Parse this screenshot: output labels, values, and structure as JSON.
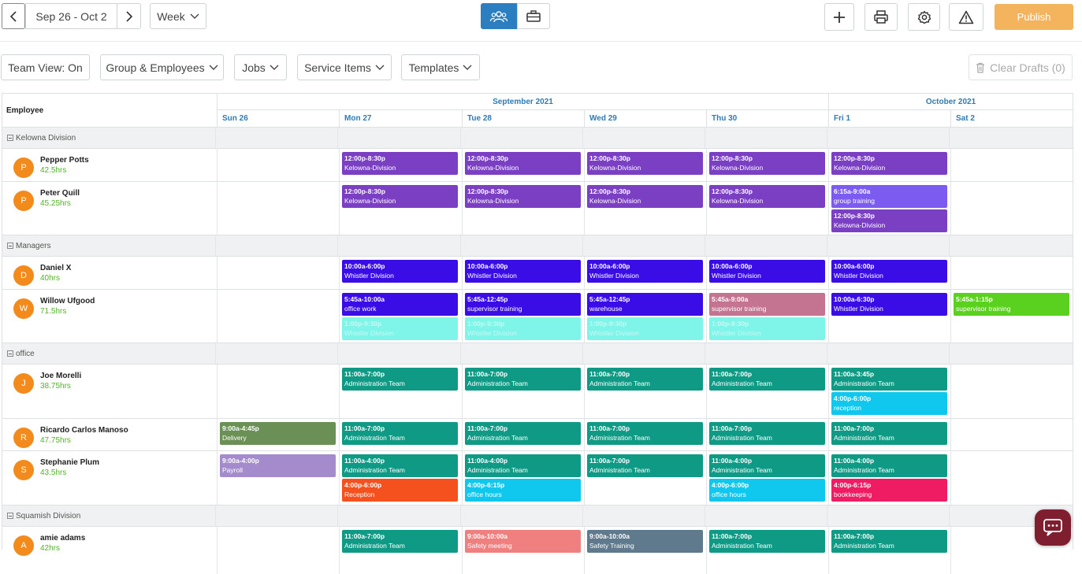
{
  "toolbar": {
    "date_range": "Sep 26 - Oct 2",
    "view_select": "Week",
    "publish_label": "Publish"
  },
  "filters": {
    "team_view": "Team View: On",
    "groups": "Group & Employees",
    "jobs": "Jobs",
    "service_items": "Service Items",
    "templates": "Templates",
    "clear_drafts": "Clear Drafts (0)"
  },
  "calendar": {
    "employee_header": "Employee",
    "months": [
      "September 2021",
      "October 2021"
    ],
    "days": [
      "Sun 26",
      "Mon 27",
      "Tue 28",
      "Wed 29",
      "Thu 30",
      "Fri 1",
      "Sat 2"
    ]
  },
  "groups": [
    {
      "name": "Kelowna Division"
    },
    {
      "name": "Managers"
    },
    {
      "name": "office"
    },
    {
      "name": "Squamish Division"
    }
  ],
  "employees": [
    {
      "initial": "P",
      "name": "Pepper Potts",
      "hours": "42.5hrs"
    },
    {
      "initial": "P",
      "name": "Peter Quill",
      "hours": "45.25hrs"
    },
    {
      "initial": "D",
      "name": "Daniel X",
      "hours": "40hrs"
    },
    {
      "initial": "W",
      "name": "Willow Ufgood",
      "hours": "71.5hrs"
    },
    {
      "initial": "J",
      "name": "Joe Morelli",
      "hours": "38.75hrs"
    },
    {
      "initial": "R",
      "name": "Ricardo Carlos Manoso",
      "hours": "47.75hrs"
    },
    {
      "initial": "S",
      "name": "Stephanie Plum",
      "hours": "43.5hrs"
    },
    {
      "initial": "A",
      "name": "amie adams",
      "hours": "42hrs"
    }
  ],
  "shifts": [
    {
      "emp": 0,
      "day": 1,
      "slot": 0,
      "time": "12:00p-8:30p",
      "label": "Kelowna-Division",
      "color": "#7b3fc4"
    },
    {
      "emp": 0,
      "day": 2,
      "slot": 0,
      "time": "12:00p-8:30p",
      "label": "Kelowna-Division",
      "color": "#7b3fc4"
    },
    {
      "emp": 0,
      "day": 3,
      "slot": 0,
      "time": "12:00p-8:30p",
      "label": "Kelowna-Division",
      "color": "#7b3fc4"
    },
    {
      "emp": 0,
      "day": 4,
      "slot": 0,
      "time": "12:00p-8:30p",
      "label": "Kelowna-Division",
      "color": "#7b3fc4"
    },
    {
      "emp": 0,
      "day": 5,
      "slot": 0,
      "time": "12:00p-8:30p",
      "label": "Kelowna-Division",
      "color": "#7b3fc4"
    },
    {
      "emp": 1,
      "day": 1,
      "slot": 0,
      "time": "12:00p-8:30p",
      "label": "Kelowna-Division",
      "color": "#7b3fc4"
    },
    {
      "emp": 1,
      "day": 2,
      "slot": 0,
      "time": "12:00p-8:30p",
      "label": "Kelowna-Division",
      "color": "#7b3fc4"
    },
    {
      "emp": 1,
      "day": 3,
      "slot": 0,
      "time": "12:00p-8:30p",
      "label": "Kelowna-Division",
      "color": "#7b3fc4"
    },
    {
      "emp": 1,
      "day": 4,
      "slot": 0,
      "time": "12:00p-8:30p",
      "label": "Kelowna-Division",
      "color": "#7b3fc4"
    },
    {
      "emp": 1,
      "day": 5,
      "slot": 0,
      "time": "6:15a-9:00a",
      "label": "group training",
      "color": "#7c5cf0"
    },
    {
      "emp": 1,
      "day": 5,
      "slot": 1,
      "time": "12:00p-8:30p",
      "label": "Kelowna-Division",
      "color": "#7b3fc4"
    },
    {
      "emp": 2,
      "day": 1,
      "slot": 0,
      "time": "10:00a-6:00p",
      "label": "Whistler Division",
      "color": "#3a0de6"
    },
    {
      "emp": 2,
      "day": 2,
      "slot": 0,
      "time": "10:00a-6:00p",
      "label": "Whistler Division",
      "color": "#3a0de6"
    },
    {
      "emp": 2,
      "day": 3,
      "slot": 0,
      "time": "10:00a-6:00p",
      "label": "Whistler Division",
      "color": "#3a0de6"
    },
    {
      "emp": 2,
      "day": 4,
      "slot": 0,
      "time": "10:00a-6:00p",
      "label": "Whistler Division",
      "color": "#3a0de6"
    },
    {
      "emp": 2,
      "day": 5,
      "slot": 0,
      "time": "10:00a-6:00p",
      "label": "Whistler Division",
      "color": "#3a0de6"
    },
    {
      "emp": 3,
      "day": 1,
      "slot": 0,
      "time": "5:45a-10:00a",
      "label": "office work",
      "color": "#3a0de6"
    },
    {
      "emp": 3,
      "day": 1,
      "slot": 1,
      "time": "1:00p-9:30p",
      "label": "Whistler Division",
      "color": "#7ff5ea"
    },
    {
      "emp": 3,
      "day": 2,
      "slot": 0,
      "time": "5:45a-12:45p",
      "label": "supervisor training",
      "color": "#3a0de6"
    },
    {
      "emp": 3,
      "day": 2,
      "slot": 1,
      "time": "1:00p-9:30p",
      "label": "Whistler Division",
      "color": "#7ff5ea"
    },
    {
      "emp": 3,
      "day": 3,
      "slot": 0,
      "time": "5:45a-12:45p",
      "label": "warehouse",
      "color": "#3a0de6"
    },
    {
      "emp": 3,
      "day": 3,
      "slot": 1,
      "time": "1:00p-9:30p",
      "label": "Whistler Division",
      "color": "#7ff5ea"
    },
    {
      "emp": 3,
      "day": 4,
      "slot": 0,
      "time": "5:45a-9:00a",
      "label": "supervisor training",
      "color": "#c47390"
    },
    {
      "emp": 3,
      "day": 4,
      "slot": 1,
      "time": "1:00p-9:30p",
      "label": "Whistler Division",
      "color": "#7ff5ea"
    },
    {
      "emp": 3,
      "day": 5,
      "slot": 0,
      "time": "10:00a-6:30p",
      "label": "Whistler Division",
      "color": "#3a0de6"
    },
    {
      "emp": 3,
      "day": 6,
      "slot": 0,
      "time": "5:45a-1:15p",
      "label": "supervisor training",
      "color": "#5ad11e"
    },
    {
      "emp": 4,
      "day": 1,
      "slot": 0,
      "time": "11:00a-7:00p",
      "label": "Administration Team",
      "color": "#0f9a86"
    },
    {
      "emp": 4,
      "day": 2,
      "slot": 0,
      "time": "11:00a-7:00p",
      "label": "Administration Team",
      "color": "#0f9a86"
    },
    {
      "emp": 4,
      "day": 3,
      "slot": 0,
      "time": "11:00a-7:00p",
      "label": "Administration Team",
      "color": "#0f9a86"
    },
    {
      "emp": 4,
      "day": 4,
      "slot": 0,
      "time": "11:00a-7:00p",
      "label": "Administration Team",
      "color": "#0f9a86"
    },
    {
      "emp": 4,
      "day": 5,
      "slot": 0,
      "time": "11:00a-3:45p",
      "label": "Administration Team",
      "color": "#0f9a86"
    },
    {
      "emp": 4,
      "day": 5,
      "slot": 1,
      "time": "4:00p-6:00p",
      "label": "reception",
      "color": "#10c8ee"
    },
    {
      "emp": 5,
      "day": 0,
      "slot": 0,
      "time": "9:00a-4:45p",
      "label": "Delivery",
      "color": "#6b9056"
    },
    {
      "emp": 5,
      "day": 1,
      "slot": 0,
      "time": "11:00a-7:00p",
      "label": "Administration Team",
      "color": "#0f9a86"
    },
    {
      "emp": 5,
      "day": 2,
      "slot": 0,
      "time": "11:00a-7:00p",
      "label": "Administration Team",
      "color": "#0f9a86"
    },
    {
      "emp": 5,
      "day": 3,
      "slot": 0,
      "time": "11:00a-7:00p",
      "label": "Administration Team",
      "color": "#0f9a86"
    },
    {
      "emp": 5,
      "day": 4,
      "slot": 0,
      "time": "11:00a-7:00p",
      "label": "Administration Team",
      "color": "#0f9a86"
    },
    {
      "emp": 5,
      "day": 5,
      "slot": 0,
      "time": "11:00a-7:00p",
      "label": "Administration Team",
      "color": "#0f9a86"
    },
    {
      "emp": 6,
      "day": 0,
      "slot": 0,
      "time": "9:00a-4:00p",
      "label": "Payroll",
      "color": "#a48ccc"
    },
    {
      "emp": 6,
      "day": 1,
      "slot": 0,
      "time": "11:00a-4:00p",
      "label": "Administration Team",
      "color": "#0f9a86"
    },
    {
      "emp": 6,
      "day": 1,
      "slot": 1,
      "time": "4:00p-6:00p",
      "label": "Reception",
      "color": "#f4511e"
    },
    {
      "emp": 6,
      "day": 2,
      "slot": 0,
      "time": "11:00a-4:00p",
      "label": "Administration Team",
      "color": "#0f9a86"
    },
    {
      "emp": 6,
      "day": 2,
      "slot": 1,
      "time": "4:00p-6:15p",
      "label": "office hours",
      "color": "#10c8ee"
    },
    {
      "emp": 6,
      "day": 3,
      "slot": 0,
      "time": "11:00a-7:00p",
      "label": "Administration Team",
      "color": "#0f9a86"
    },
    {
      "emp": 6,
      "day": 4,
      "slot": 0,
      "time": "11:00a-4:00p",
      "label": "Administration Team",
      "color": "#0f9a86"
    },
    {
      "emp": 6,
      "day": 4,
      "slot": 1,
      "time": "4:00p-6:00p",
      "label": "office hours",
      "color": "#10c8ee"
    },
    {
      "emp": 6,
      "day": 5,
      "slot": 0,
      "time": "11:00a-4:00p",
      "label": "Administration Team",
      "color": "#0f9a86"
    },
    {
      "emp": 6,
      "day": 5,
      "slot": 1,
      "time": "4:00p-6:15p",
      "label": "bookkeeping",
      "color": "#ef1c63"
    },
    {
      "emp": 7,
      "day": 1,
      "slot": 0,
      "time": "11:00a-7:00p",
      "label": "Administration Team",
      "color": "#0f9a86"
    },
    {
      "emp": 7,
      "day": 2,
      "slot": 0,
      "time": "9:00a-10:00a",
      "label": "Safety meeting",
      "color": "#f08080"
    },
    {
      "emp": 7,
      "day": 3,
      "slot": 0,
      "time": "9:00a-10:00a",
      "label": "Safety Training",
      "color": "#5f7a8c"
    },
    {
      "emp": 7,
      "day": 4,
      "slot": 0,
      "time": "11:00a-7:00p",
      "label": "Administration Team",
      "color": "#0f9a86"
    },
    {
      "emp": 7,
      "day": 5,
      "slot": 0,
      "time": "11:00a-7:00p",
      "label": "Administration Team",
      "color": "#0f9a86"
    }
  ]
}
